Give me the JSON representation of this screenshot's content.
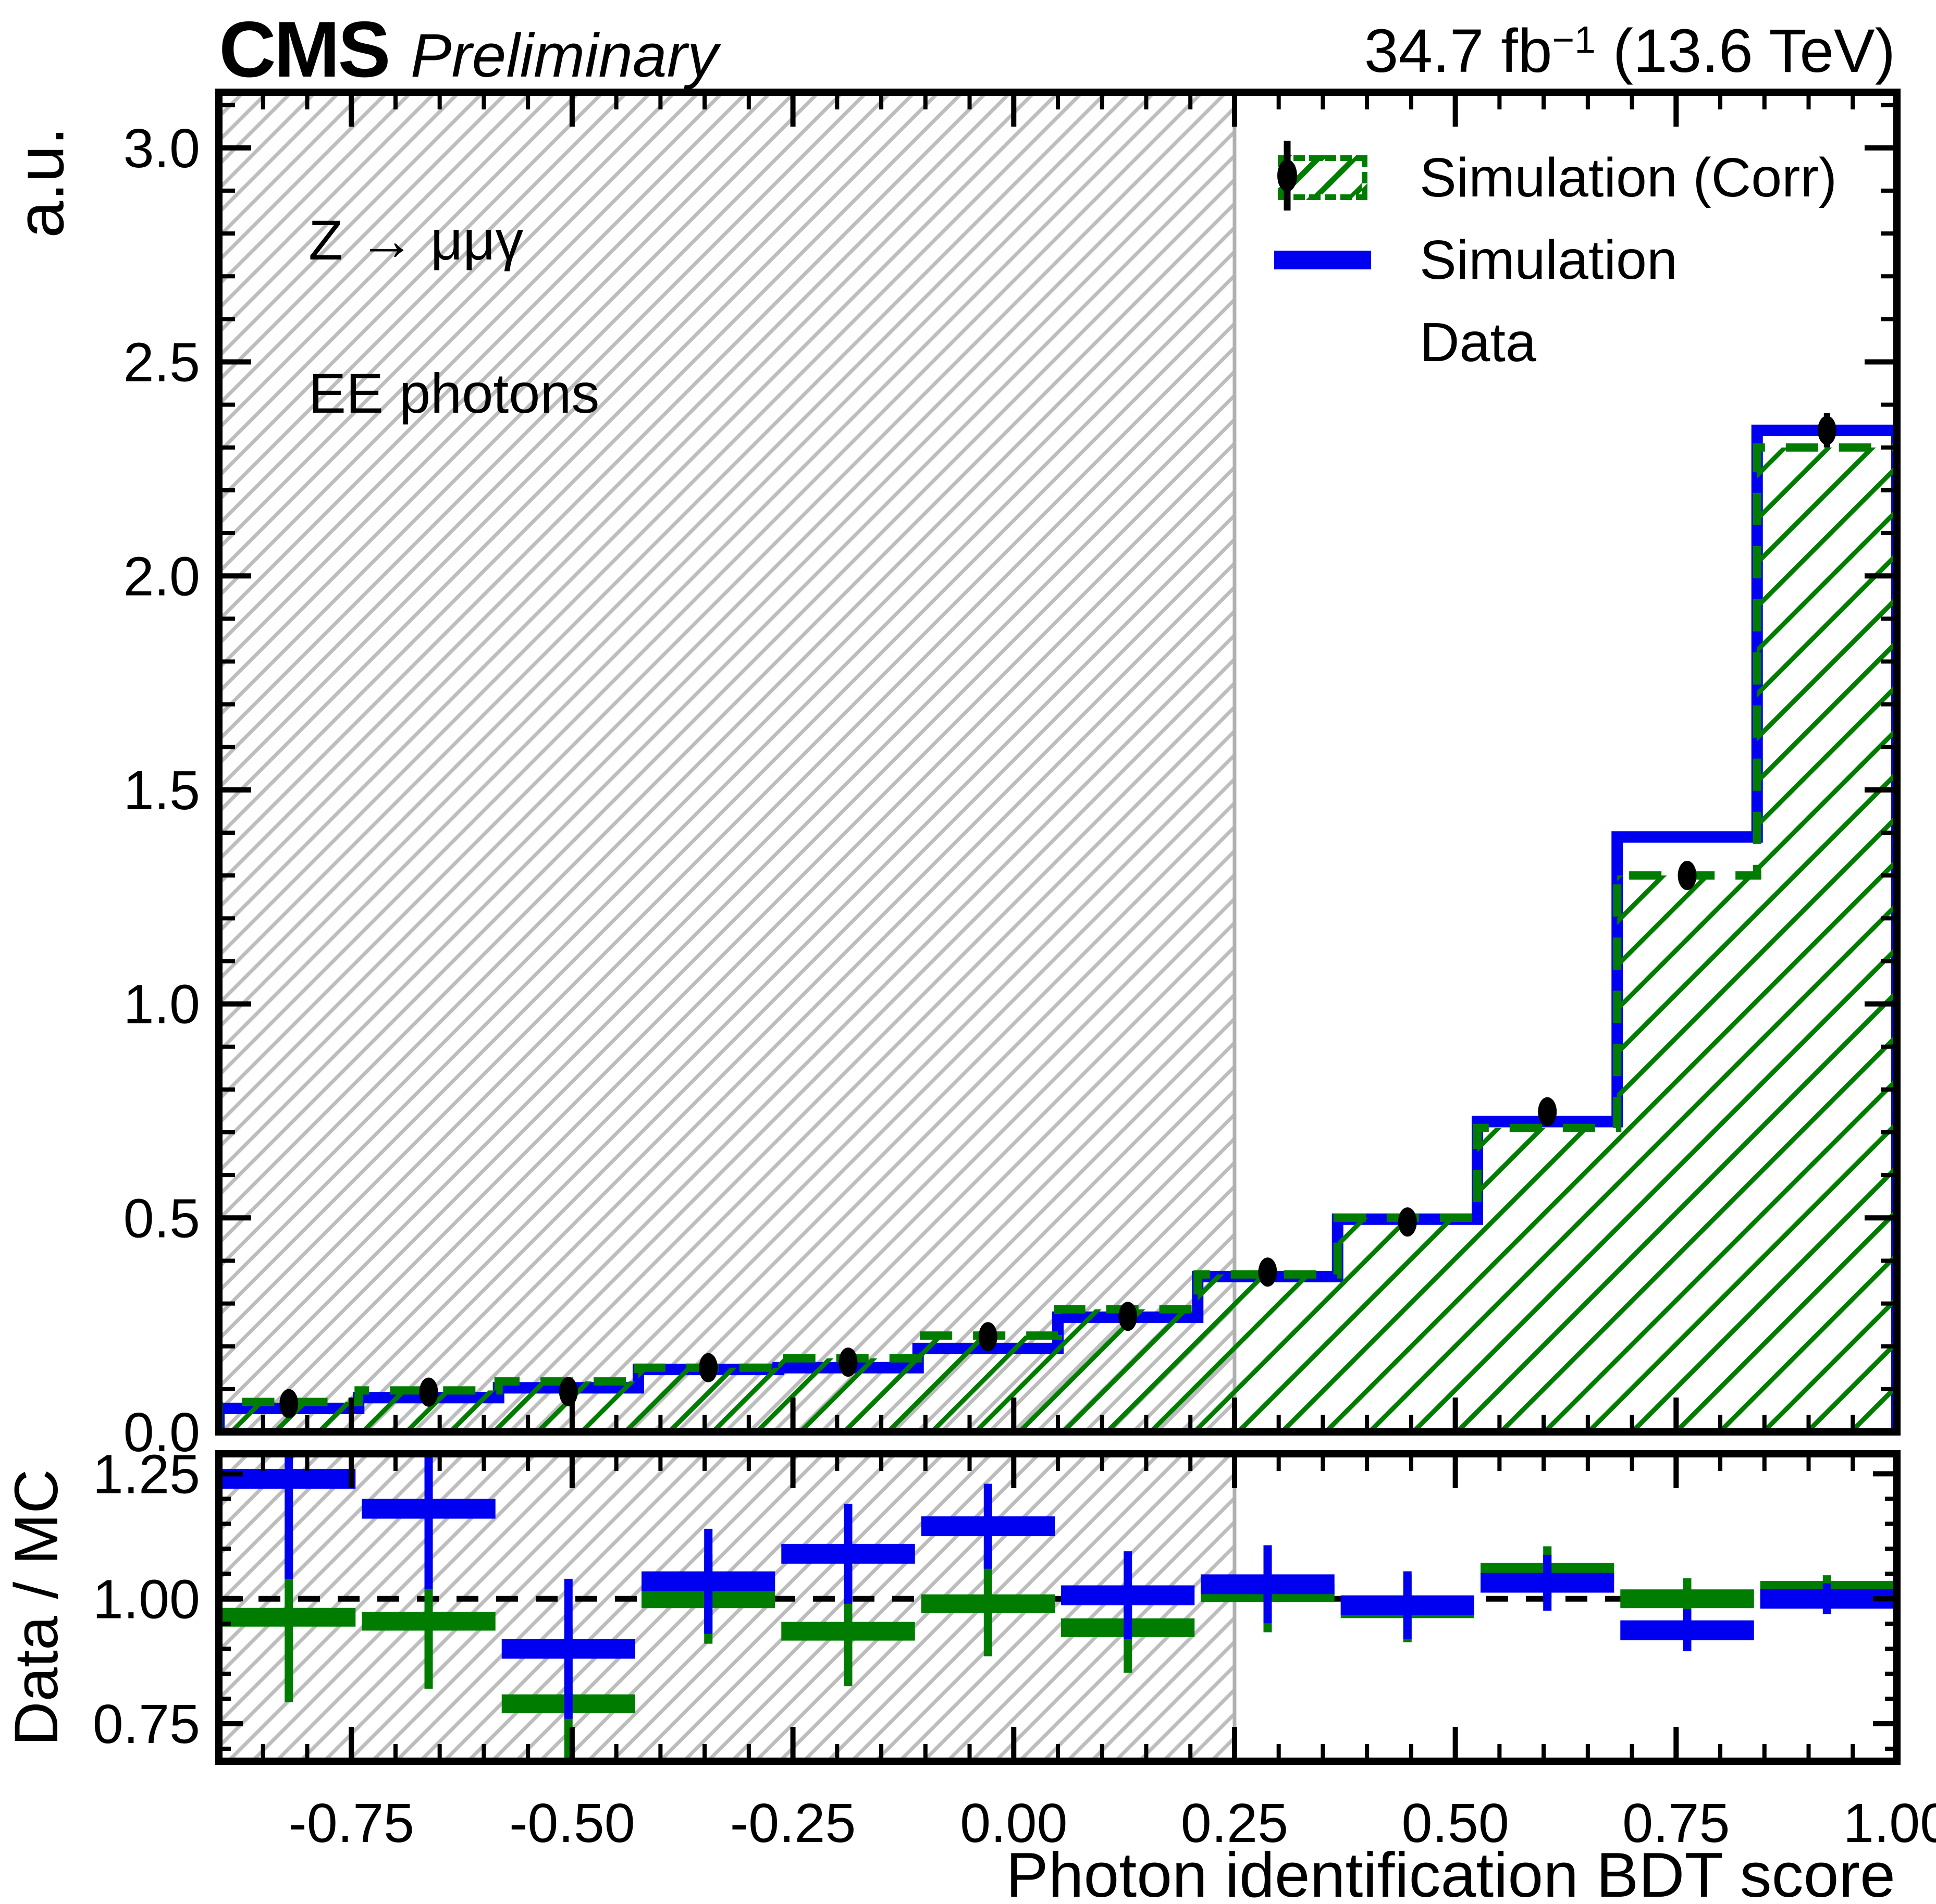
{
  "header": {
    "experiment": "CMS",
    "status": "Preliminary",
    "lumi_main": "34.7 fb",
    "lumi_sup": "−1",
    "lumi_energy": " (13.6 TeV)"
  },
  "annotations": {
    "process": "Z → μμγ",
    "detector": "EE photons"
  },
  "legend": {
    "items": [
      {
        "label": "Simulation (Corr)"
      },
      {
        "label": "Simulation"
      },
      {
        "label": "Data"
      }
    ]
  },
  "colors": {
    "simulation": "#0000f0",
    "simulation_corr": "#007d00",
    "data": "#000000",
    "gray_hatch": "#bdbdbd",
    "region_boundary": "#b0b0b0",
    "frame": "#000000"
  },
  "chart_data": {
    "type": "bar",
    "subtype": "step-histogram-with-ratio",
    "title": "",
    "xlabel": "Photon identification BDT score",
    "x": {
      "min": -0.9,
      "max": 1.0,
      "bin_edges": [
        -0.9,
        -0.7417,
        -0.5833,
        -0.425,
        -0.2667,
        -0.1083,
        0.05,
        0.2083,
        0.3667,
        0.525,
        0.6833,
        0.8417,
        1.0
      ],
      "bin_centers": [
        -0.8208,
        -0.6625,
        -0.5042,
        -0.3458,
        -0.1875,
        -0.0292,
        0.1292,
        0.2875,
        0.4458,
        0.6042,
        0.7625,
        0.9208
      ],
      "major_ticks": [
        -0.75,
        -0.5,
        -0.25,
        0.0,
        0.25,
        0.5,
        0.75,
        1.0
      ],
      "major_tick_labels": [
        "-0.75",
        "-0.50",
        "-0.25",
        "0.00",
        "0.25",
        "0.50",
        "0.75",
        "1.00"
      ],
      "minor_tick_step": 0.05
    },
    "shaded_region": {
      "x_min": -0.9,
      "x_max": 0.25,
      "style": "gray-hatched"
    },
    "main_panel": {
      "ylabel": "a.u.",
      "ylim": [
        0,
        3.13
      ],
      "major_ticks": [
        0.0,
        0.5,
        1.0,
        1.5,
        2.0,
        2.5,
        3.0
      ],
      "major_tick_labels": [
        "0.0",
        "0.5",
        "1.0",
        "1.5",
        "2.0",
        "2.5",
        "3.0"
      ],
      "minor_tick_step": 0.1,
      "grid": false,
      "series": [
        {
          "name": "Simulation (Corr)",
          "style": "hatched-dashed-step",
          "color": "#007d00",
          "values": [
            0.07,
            0.097,
            0.118,
            0.15,
            0.172,
            0.225,
            0.2865,
            0.368,
            0.5005,
            0.71,
            1.3,
            2.3
          ]
        },
        {
          "name": "Simulation",
          "style": "solid-step",
          "color": "#0000f0",
          "values": [
            0.055,
            0.08,
            0.103,
            0.146,
            0.15,
            0.195,
            0.268,
            0.363,
            0.497,
            0.725,
            1.39,
            2.34
          ]
        },
        {
          "name": "Data",
          "style": "points-with-errors",
          "color": "#000000",
          "values": [
            0.066,
            0.093,
            0.094,
            0.15,
            0.163,
            0.2225,
            0.27,
            0.3735,
            0.4905,
            0.748,
            1.3,
            2.34
          ],
          "errors": [
            0.008,
            0.009,
            0.009,
            0.011,
            0.012,
            0.014,
            0.015,
            0.017,
            0.02,
            0.024,
            0.033,
            0.04
          ]
        }
      ]
    },
    "ratio_panel": {
      "ylabel": "Data / MC",
      "ylim": [
        0.675,
        1.29
      ],
      "major_ticks": [
        0.75,
        1.0,
        1.25
      ],
      "major_tick_labels": [
        "0.75",
        "1.00",
        "1.25"
      ],
      "minor_tick_step": 0.05,
      "reference_line": 1.0,
      "series": [
        {
          "name": "Data / Simulation",
          "color": "#0000f0",
          "values": [
            1.24,
            1.18,
            0.9,
            1.035,
            1.09,
            1.145,
            1.007,
            1.029,
            0.987,
            1.032,
            0.937,
            1.0
          ],
          "errors": [
            0.2,
            0.16,
            0.14,
            0.105,
            0.1,
            0.085,
            0.088,
            0.078,
            0.068,
            0.056,
            0.042,
            0.031
          ]
        },
        {
          "name": "Data / Simulation (Corr)",
          "color": "#007d00",
          "values": [
            0.963,
            0.955,
            0.79,
            1.0,
            0.935,
            0.99,
            0.942,
            1.012,
            0.98,
            1.053,
            1.0,
            1.017
          ],
          "errors": [
            0.17,
            0.135,
            0.155,
            0.09,
            0.11,
            0.105,
            0.09,
            0.079,
            0.067,
            0.052,
            0.041,
            0.03
          ]
        }
      ]
    }
  }
}
